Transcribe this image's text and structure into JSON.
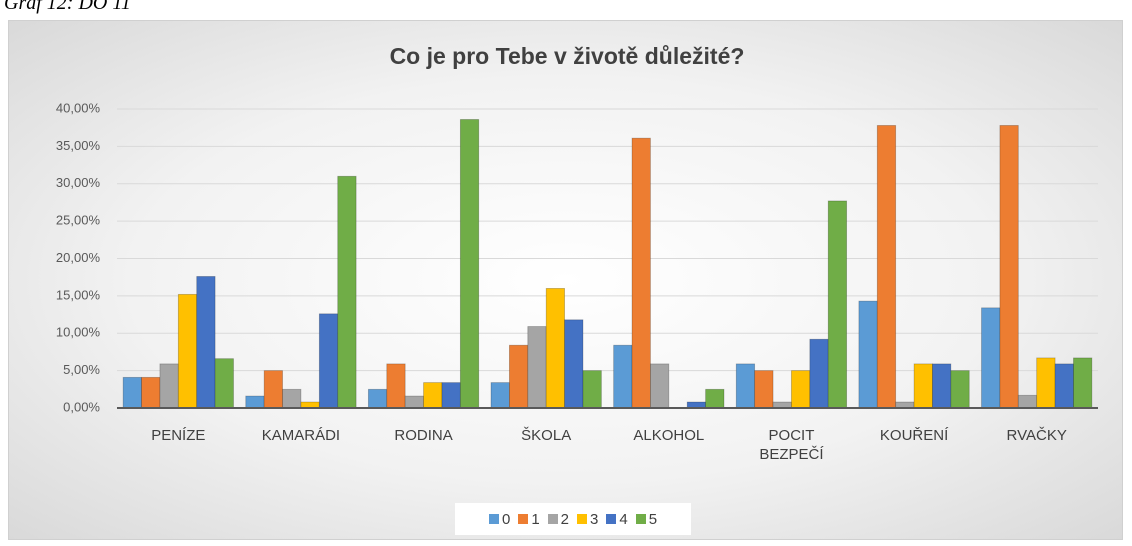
{
  "caption": "Graf 12: DO 11",
  "chart_data": {
    "type": "bar",
    "title": "Co je pro Tebe v životě důležité?",
    "categories": [
      "PENÍZE",
      "KAMARÁDI",
      "RODINA",
      "ŠKOLA",
      "ALKOHOL",
      "POCIT BEZPEČÍ",
      "KOUŘENÍ",
      "RVAČKY"
    ],
    "series": [
      {
        "name": "0",
        "color": "#5b9bd5",
        "values": [
          4.1,
          1.6,
          2.5,
          3.4,
          8.4,
          5.9,
          14.3,
          13.4
        ]
      },
      {
        "name": "1",
        "color": "#ed7d31",
        "values": [
          4.1,
          5.0,
          5.9,
          8.4,
          36.1,
          5.0,
          37.8,
          37.8
        ]
      },
      {
        "name": "2",
        "color": "#a5a5a5",
        "values": [
          5.9,
          2.5,
          1.6,
          10.9,
          5.9,
          0.8,
          0.8,
          1.7
        ]
      },
      {
        "name": "3",
        "color": "#ffc000",
        "values": [
          15.2,
          0.8,
          3.4,
          16.0,
          0,
          5.0,
          5.9,
          6.7
        ]
      },
      {
        "name": "4",
        "color": "#4472c4",
        "values": [
          17.6,
          12.6,
          3.4,
          11.8,
          0.8,
          9.2,
          5.9,
          5.9
        ]
      },
      {
        "name": "5",
        "color": "#70ad47",
        "values": [
          6.6,
          31.0,
          38.6,
          5.0,
          2.5,
          27.7,
          5.0,
          6.7
        ]
      }
    ],
    "ylim": [
      0,
      40
    ],
    "yticks": [
      {
        "value": 0,
        "label": "0,00%"
      },
      {
        "value": 5,
        "label": "5,00%"
      },
      {
        "value": 10,
        "label": "10,00%"
      },
      {
        "value": 15,
        "label": "15,00%"
      },
      {
        "value": 20,
        "label": "20,00%"
      },
      {
        "value": 25,
        "label": "25,00%"
      },
      {
        "value": 30,
        "label": "30,00%"
      },
      {
        "value": 35,
        "label": "35,00%"
      },
      {
        "value": 40,
        "label": "40,00%"
      }
    ],
    "grid": true,
    "legend": "bottom"
  }
}
